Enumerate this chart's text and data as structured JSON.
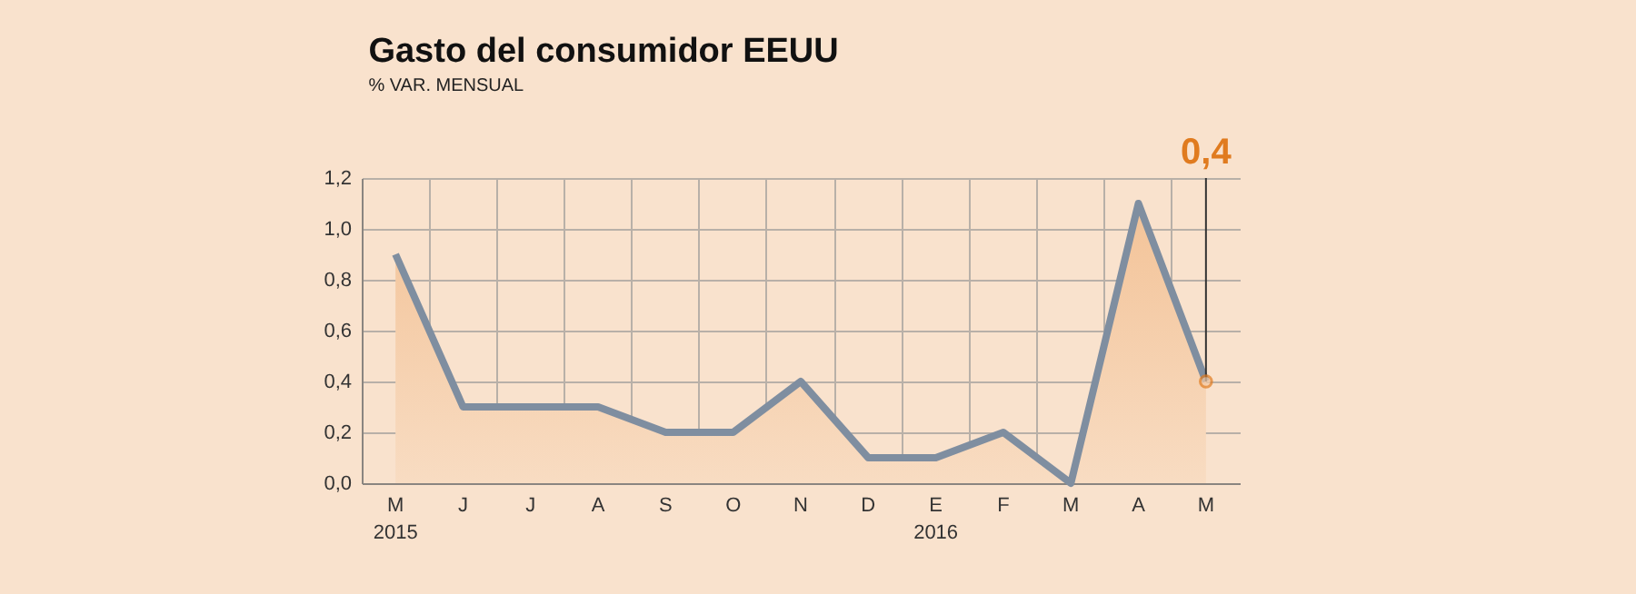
{
  "chart_data": {
    "type": "area",
    "title": "Gasto del consumidor EEUU",
    "subtitle": "% VAR. MENSUAL",
    "categories": [
      "M\n2015",
      "J",
      "J",
      "A",
      "S",
      "O",
      "N",
      "D",
      "E\n2016",
      "F",
      "M",
      "A",
      "M"
    ],
    "series": [
      {
        "color": "#7f8ea0",
        "values": [
          0.9,
          0.3,
          0.3,
          0.3,
          0.2,
          0.2,
          0.4,
          0.1,
          0.1,
          0.2,
          0.0,
          1.1,
          0.4
        ],
        "value_labels": [
          null,
          null,
          null,
          null,
          null,
          null,
          null,
          null,
          null,
          null,
          null,
          null,
          "0,4"
        ]
      }
    ],
    "ylim": [
      0,
      1.2
    ],
    "yticks": [
      {
        "value": 0,
        "label": "0,0"
      },
      {
        "value": 0.2,
        "label": "0,2"
      },
      {
        "value": 0.4,
        "label": "0,4"
      },
      {
        "value": 0.6,
        "label": "0,6"
      },
      {
        "value": 0.8,
        "label": "0,8"
      },
      {
        "value": 1.0,
        "label": "1,0"
      },
      {
        "value": 1.2,
        "label": "1,2"
      }
    ],
    "grid": true,
    "marker": "none",
    "line_style": "solid"
  }
}
